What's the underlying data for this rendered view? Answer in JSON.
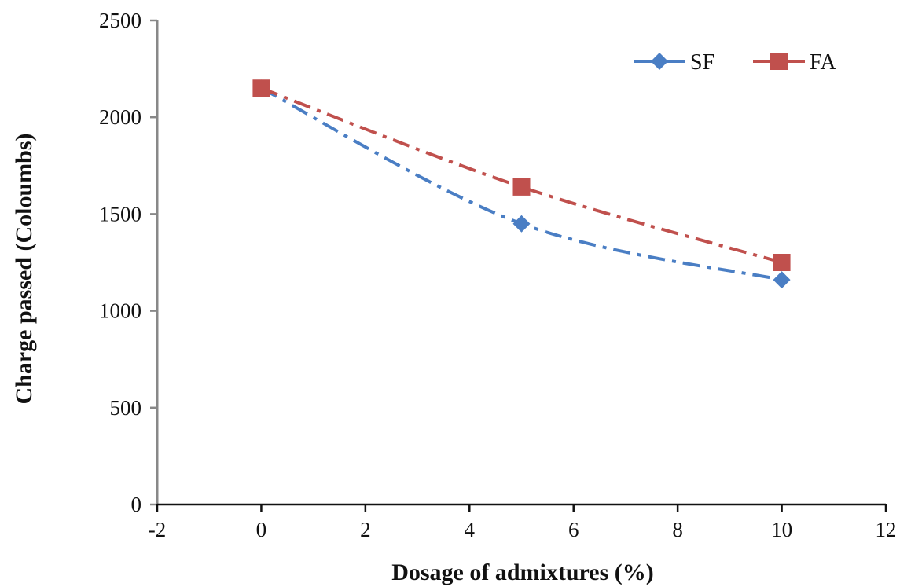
{
  "chart_data": {
    "type": "line",
    "title": "",
    "xlabel": "Dosage of admixtures (%)",
    "ylabel": "Charge passed (Coloumbs)",
    "xlim": [
      -2,
      12
    ],
    "ylim": [
      0,
      2500
    ],
    "xticks": [
      -2,
      0,
      2,
      4,
      6,
      8,
      10,
      12
    ],
    "yticks": [
      0,
      500,
      1000,
      1500,
      2000,
      2500
    ],
    "grid": false,
    "legend_position": "top-right",
    "series": [
      {
        "name": "SF",
        "color": "#4A7EC4",
        "marker": "diamond",
        "line_style": "dash-dot",
        "x": [
          0,
          5,
          10
        ],
        "y": [
          2150,
          1450,
          1160
        ]
      },
      {
        "name": "FA",
        "color": "#C0504D",
        "marker": "square",
        "line_style": "dash-dot",
        "x": [
          0,
          5,
          10
        ],
        "y": [
          2150,
          1640,
          1250
        ]
      }
    ]
  }
}
